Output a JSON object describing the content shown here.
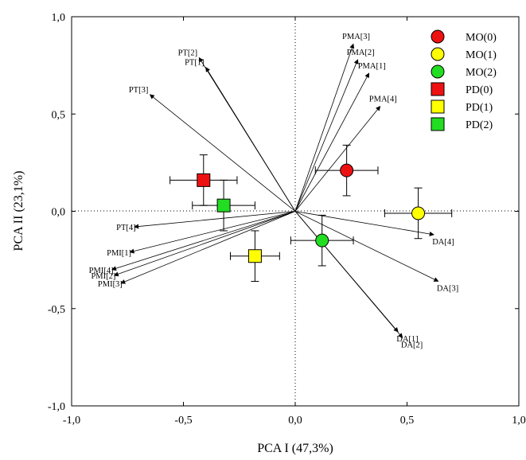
{
  "chart_data": {
    "type": "scatter",
    "xlabel": "PCA I (47,3%)",
    "ylabel": "PCA II (23,1%)",
    "xlim": [
      -1.0,
      1.0
    ],
    "ylim": [
      -1.0,
      1.0
    ],
    "xticks": [
      "-1,0",
      "-0,5",
      "0,0",
      "0,5",
      "1,0"
    ],
    "yticks": [
      "1,0",
      "0,5",
      "0,0",
      "-0,5",
      "-1,0"
    ],
    "grid": false,
    "zero_lines": "dotted",
    "legend_position": "top-right",
    "vectors": [
      {
        "label": "PMA[3]",
        "x": 0.26,
        "y": 0.86
      },
      {
        "label": "PMA[2]",
        "x": 0.28,
        "y": 0.78
      },
      {
        "label": "PMA[1]",
        "x": 0.33,
        "y": 0.71
      },
      {
        "label": "PMA[4]",
        "x": 0.38,
        "y": 0.54
      },
      {
        "label": "PT[2]",
        "x": -0.43,
        "y": 0.79
      },
      {
        "label": "PT[1]",
        "x": -0.4,
        "y": 0.74
      },
      {
        "label": "PT[3]",
        "x": -0.65,
        "y": 0.6
      },
      {
        "label": "PT[4]",
        "x": -0.72,
        "y": -0.08
      },
      {
        "label": "PMI[1]",
        "x": -0.74,
        "y": -0.21
      },
      {
        "label": "PMI[4]",
        "x": -0.82,
        "y": -0.3
      },
      {
        "label": "PMI[2]",
        "x": -0.81,
        "y": -0.33
      },
      {
        "label": "PMI[3]",
        "x": -0.78,
        "y": -0.37
      },
      {
        "label": "DA[4]",
        "x": 0.62,
        "y": -0.12
      },
      {
        "label": "DA[3]",
        "x": 0.64,
        "y": -0.36
      },
      {
        "label": "DA[1]",
        "x": 0.46,
        "y": -0.62
      },
      {
        "label": "DA[2]",
        "x": 0.48,
        "y": -0.65
      }
    ],
    "series": [
      {
        "name": "MO(0)",
        "marker": "circle",
        "color": "#ee1111",
        "x": 0.23,
        "y": 0.21,
        "xerr": 0.14,
        "yerr": 0.13
      },
      {
        "name": "MO(1)",
        "marker": "circle",
        "color": "#ffff00",
        "x": 0.55,
        "y": -0.01,
        "xerr": 0.15,
        "yerr": 0.13
      },
      {
        "name": "MO(2)",
        "marker": "circle",
        "color": "#22dd22",
        "x": 0.12,
        "y": -0.15,
        "xerr": 0.14,
        "yerr": 0.13
      },
      {
        "name": "PD(0)",
        "marker": "square",
        "color": "#ee1111",
        "x": -0.41,
        "y": 0.16,
        "xerr": 0.15,
        "yerr": 0.13
      },
      {
        "name": "PD(1)",
        "marker": "square",
        "color": "#ffff00",
        "x": -0.18,
        "y": -0.23,
        "xerr": 0.11,
        "yerr": 0.13
      },
      {
        "name": "PD(2)",
        "marker": "square",
        "color": "#22dd22",
        "x": -0.32,
        "y": 0.03,
        "xerr": 0.14,
        "yerr": 0.13
      }
    ]
  }
}
